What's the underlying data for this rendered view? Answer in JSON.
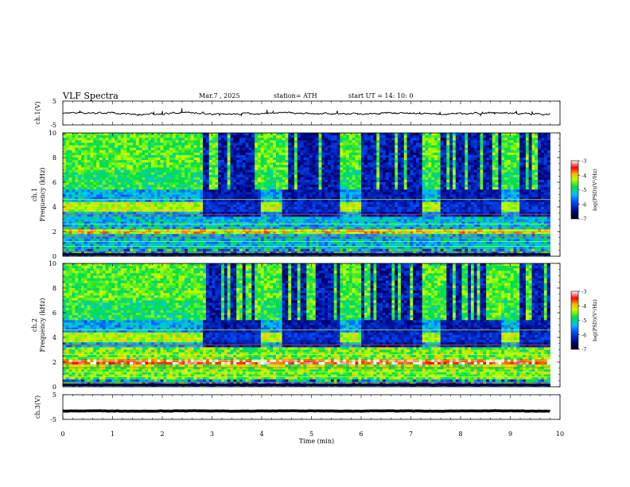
{
  "header": {
    "title": "VLF  Spectra",
    "date": "Mar.7  , 2025",
    "station": "station= ATH",
    "start": "start  UT  =   14: 10: 0"
  },
  "chart_data": [
    {
      "type": "line",
      "name": "ch1-waveform",
      "ylabel": "ch.1(V)",
      "ylim": [
        -5,
        5
      ],
      "yticks": [
        "5",
        "-5"
      ],
      "baseline": -0.2,
      "amplitude": 0.8
    },
    {
      "type": "heatmap",
      "name": "ch1-spectrogram",
      "ylabel": "ch.1\nFrequency  (kHz)",
      "ylim": [
        0,
        10
      ],
      "yticks": [
        "0",
        "2",
        "4",
        "6",
        "8",
        "10"
      ],
      "quiet_intervals_min": [
        [
          2.8,
          4.0
        ],
        [
          4.4,
          5.6
        ],
        [
          6.0,
          7.2
        ],
        [
          7.6,
          8.8
        ],
        [
          9.2,
          9.8
        ]
      ],
      "tone_band_khz": [
        3.6,
        4.4
      ],
      "colorbar": {
        "label": "log(PSD)(V²/Hz)",
        "range": [
          -7,
          -3
        ],
        "ticks": [
          "-3",
          "-4",
          "-5",
          "-6",
          "-7"
        ]
      }
    },
    {
      "type": "heatmap",
      "name": "ch2-spectrogram",
      "ylabel": "ch.2\nFrequency  (kHz)",
      "ylim": [
        0,
        10
      ],
      "yticks": [
        "0",
        "2",
        "4",
        "6",
        "8",
        "10"
      ],
      "quiet_intervals_min": [
        [
          2.8,
          4.0
        ],
        [
          4.4,
          5.6
        ],
        [
          6.0,
          7.2
        ],
        [
          7.6,
          8.8
        ],
        [
          9.2,
          9.8
        ]
      ],
      "tone_band_khz": [
        3.6,
        4.4
      ],
      "colorbar": {
        "label": "log(PSD)(V²/Hz)",
        "range": [
          -7,
          -3
        ],
        "ticks": [
          "-3",
          "-4",
          "-5",
          "-6",
          "-7"
        ]
      }
    },
    {
      "type": "line",
      "name": "ch3-waveform",
      "ylabel": "ch.3(V)",
      "ylim": [
        -5,
        5
      ],
      "yticks": [
        "5",
        "-5"
      ],
      "baseline": -1.6,
      "amplitude": 0.15
    }
  ],
  "xaxis": {
    "label": "Time  (min)",
    "range": [
      0,
      10
    ],
    "ticks": [
      "0",
      "1",
      "2",
      "3",
      "4",
      "5",
      "6",
      "7",
      "8",
      "9",
      "10"
    ],
    "data_end_min": 9.8
  },
  "colors": {
    "low": "#000080",
    "mid": "#00e040",
    "high": "#ff0000",
    "top": "#ffffff"
  }
}
